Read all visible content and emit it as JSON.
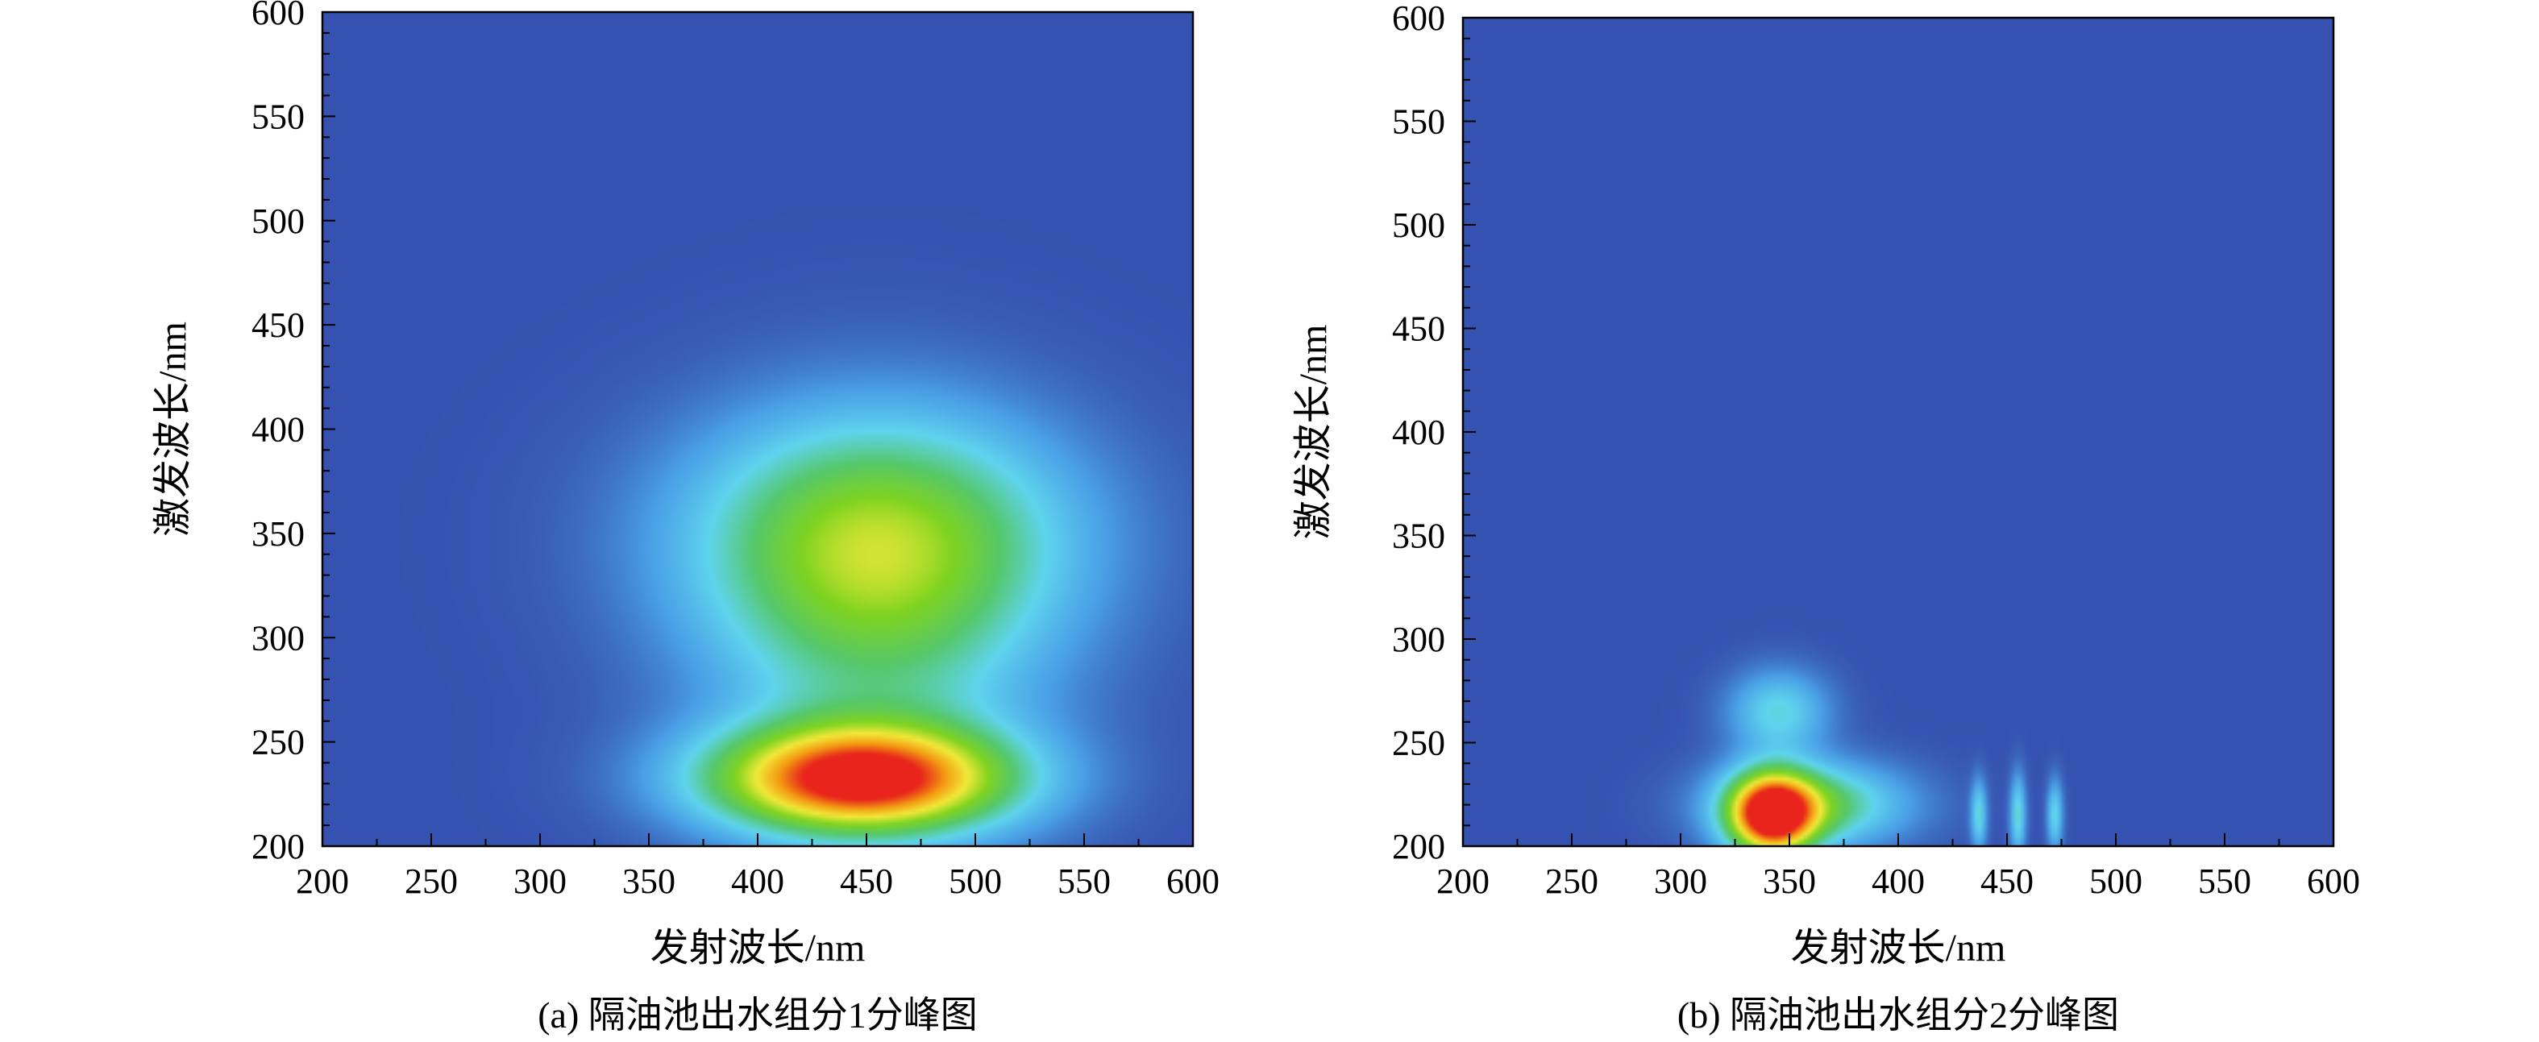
{
  "chart_data": [
    {
      "type": "heatmap",
      "panel": "a",
      "caption": "(a) 隔油池出水组分1分峰图",
      "xlabel": "发射波长/nm",
      "ylabel": "激发波长/nm",
      "xlim": [
        200,
        600
      ],
      "ylim": [
        200,
        600
      ],
      "xticks": [
        200,
        250,
        300,
        350,
        400,
        450,
        500,
        550,
        600
      ],
      "yticks": [
        200,
        250,
        300,
        350,
        400,
        450,
        500,
        550,
        600
      ],
      "colormap": [
        "#3652b0",
        "#4aa0e6",
        "#5fd4ee",
        "#56c86a",
        "#7ed321",
        "#f2e93a",
        "#f39c12",
        "#e8241c"
      ],
      "background_level": 0,
      "peaks": [
        {
          "em": 447,
          "ex": 232,
          "em_width": 48,
          "ex_width": 18,
          "intensity": 1.0
        },
        {
          "em": 455,
          "ex": 350,
          "em_width": 62,
          "ex_width": 40,
          "intensity": 0.45
        },
        {
          "em": 455,
          "ex": 300,
          "em_width": 55,
          "ex_width": 60,
          "intensity": 0.3
        }
      ]
    },
    {
      "type": "heatmap",
      "panel": "b",
      "caption": "(b) 隔油池出水组分2分峰图",
      "xlabel": "发射波长/nm",
      "ylabel": "激发波长/nm",
      "xlim": [
        200,
        600
      ],
      "ylim": [
        200,
        600
      ],
      "xticks": [
        200,
        250,
        300,
        350,
        400,
        450,
        500,
        550,
        600
      ],
      "yticks": [
        200,
        250,
        300,
        350,
        400,
        450,
        500,
        550,
        600
      ],
      "colormap": [
        "#3652b0",
        "#4aa0e6",
        "#5fd4ee",
        "#56c86a",
        "#7ed321",
        "#f2e93a",
        "#f39c12",
        "#e8241c"
      ],
      "background_level": 0,
      "peaks": [
        {
          "em": 342,
          "ex": 215,
          "em_width": 14,
          "ex_width": 14,
          "intensity": 1.0
        },
        {
          "em": 345,
          "ex": 265,
          "em_width": 16,
          "ex_width": 14,
          "intensity": 0.3
        },
        {
          "em": 360,
          "ex": 220,
          "em_width": 30,
          "ex_width": 14,
          "intensity": 0.45
        },
        {
          "em": 437,
          "ex": 215,
          "em_width": 2.5,
          "ex_width": 12,
          "intensity": 0.3
        },
        {
          "em": 455,
          "ex": 215,
          "em_width": 2.5,
          "ex_width": 14,
          "intensity": 0.32
        },
        {
          "em": 472,
          "ex": 215,
          "em_width": 2.5,
          "ex_width": 12,
          "intensity": 0.3
        }
      ]
    }
  ]
}
